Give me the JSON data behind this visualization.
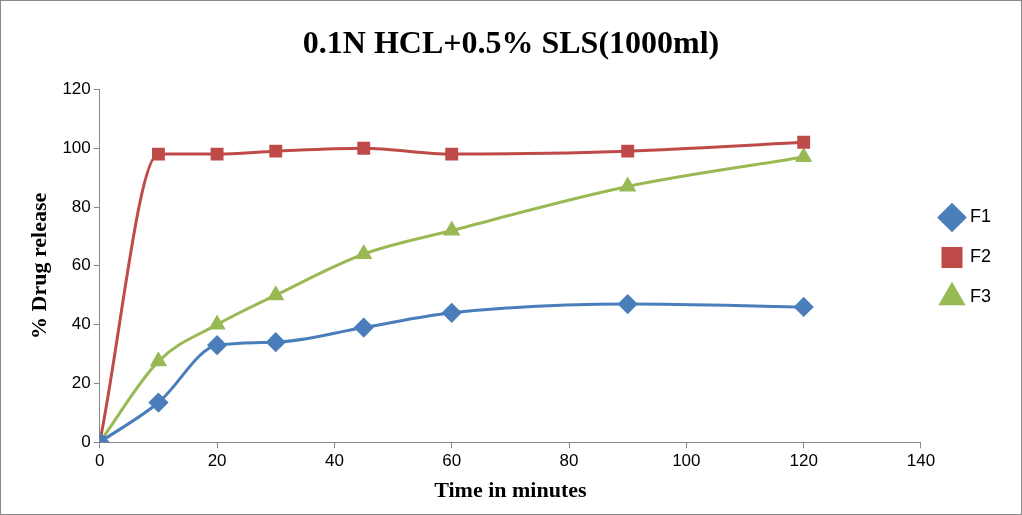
{
  "chart_data": {
    "type": "line",
    "title": "0.1N HCL+0.5% SLS(1000ml)",
    "xlabel": "Time in minutes",
    "ylabel": "% Drug release",
    "x": [
      0,
      10,
      20,
      30,
      45,
      60,
      90,
      120
    ],
    "series": [
      {
        "name": "F1",
        "color": "#4a7ebb",
        "marker": "diamond",
        "values": [
          0,
          13.5,
          33,
          34,
          39,
          44,
          47,
          46
        ]
      },
      {
        "name": "F2",
        "color": "#be4b48",
        "marker": "square",
        "values": [
          0,
          98,
          98,
          99,
          100,
          98,
          99,
          102
        ]
      },
      {
        "name": "F3",
        "color": "#98b954",
        "marker": "triangle",
        "values": [
          0,
          27.5,
          40,
          50,
          64,
          72,
          87,
          97
        ]
      }
    ],
    "xlim": [
      0,
      140
    ],
    "xticks": [
      0,
      20,
      40,
      60,
      80,
      100,
      120,
      140
    ],
    "ylim": [
      0,
      120
    ],
    "yticks": [
      0,
      20,
      40,
      60,
      80,
      100,
      120
    ],
    "grid": false,
    "legend": "right"
  }
}
